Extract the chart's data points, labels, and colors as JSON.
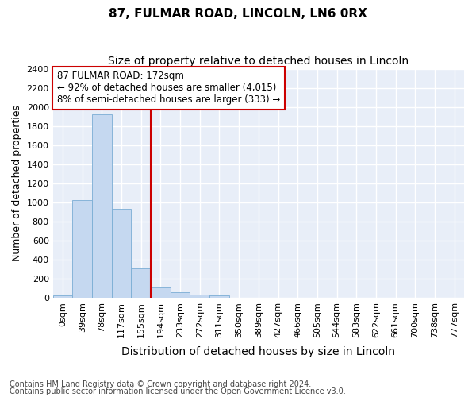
{
  "title1": "87, FULMAR ROAD, LINCOLN, LN6 0RX",
  "title2": "Size of property relative to detached houses in Lincoln",
  "xlabel": "Distribution of detached houses by size in Lincoln",
  "ylabel": "Number of detached properties",
  "bar_labels": [
    "0sqm",
    "39sqm",
    "78sqm",
    "117sqm",
    "155sqm",
    "194sqm",
    "233sqm",
    "272sqm",
    "311sqm",
    "350sqm",
    "389sqm",
    "427sqm",
    "466sqm",
    "505sqm",
    "544sqm",
    "583sqm",
    "622sqm",
    "661sqm",
    "700sqm",
    "738sqm",
    "777sqm"
  ],
  "bar_values": [
    20,
    1020,
    1920,
    930,
    310,
    110,
    55,
    35,
    20,
    0,
    0,
    0,
    0,
    0,
    0,
    0,
    0,
    0,
    0,
    0,
    0
  ],
  "bar_color": "#c5d8f0",
  "bar_edge_color": "#7aadd4",
  "vline_x": 4.5,
  "vline_color": "#cc0000",
  "ylim": [
    0,
    2400
  ],
  "yticks": [
    0,
    200,
    400,
    600,
    800,
    1000,
    1200,
    1400,
    1600,
    1800,
    2000,
    2200,
    2400
  ],
  "annotation_line1": "87 FULMAR ROAD: 172sqm",
  "annotation_line2": "← 92% of detached houses are smaller (4,015)",
  "annotation_line3": "8% of semi-detached houses are larger (333) →",
  "annotation_box_color": "#cc0000",
  "footer1": "Contains HM Land Registry data © Crown copyright and database right 2024.",
  "footer2": "Contains public sector information licensed under the Open Government Licence v3.0.",
  "bg_color": "#e8eef8",
  "grid_color": "#ffffff",
  "title1_fontsize": 11,
  "title2_fontsize": 10,
  "xlabel_fontsize": 10,
  "ylabel_fontsize": 9,
  "tick_fontsize": 8,
  "annot_fontsize": 8.5,
  "footer_fontsize": 7
}
